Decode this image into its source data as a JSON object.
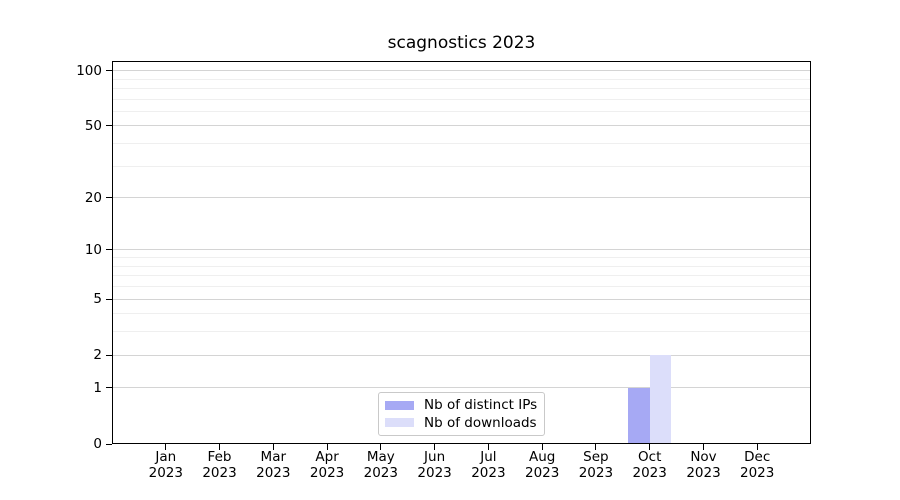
{
  "chart_data": {
    "type": "bar",
    "title": "scagnostics 2023",
    "categories": [
      "Jan",
      "Feb",
      "Mar",
      "Apr",
      "May",
      "Jun",
      "Jul",
      "Aug",
      "Sep",
      "Oct",
      "Nov",
      "Dec"
    ],
    "x_tick_year": "2023",
    "series": [
      {
        "name": "Nb of distinct IPs",
        "color": "#a6a9f4",
        "values": [
          0,
          0,
          0,
          0,
          0,
          0,
          0,
          0,
          0,
          1,
          0,
          0
        ]
      },
      {
        "name": "Nb of downloads",
        "color": "#dcdefa",
        "values": [
          0,
          0,
          0,
          0,
          0,
          0,
          0,
          0,
          0,
          2,
          0,
          0
        ]
      }
    ],
    "y_axis": {
      "scale": "log1p",
      "major_ticks": [
        0,
        1,
        2,
        5,
        10,
        20,
        50,
        100
      ],
      "minor_gridlines": [
        3,
        4,
        6,
        7,
        8,
        9,
        30,
        40,
        60,
        70,
        80,
        90
      ],
      "min": 0,
      "max": 112.6
    },
    "legend": {
      "position": "lower center"
    },
    "grid": "both"
  },
  "colors": {
    "major_grid": "#d4d4d4",
    "minor_grid": "#efefef",
    "axis": "#000000",
    "text": "#000000",
    "legend_border": "#c9c9c9",
    "background": "#ffffff"
  }
}
